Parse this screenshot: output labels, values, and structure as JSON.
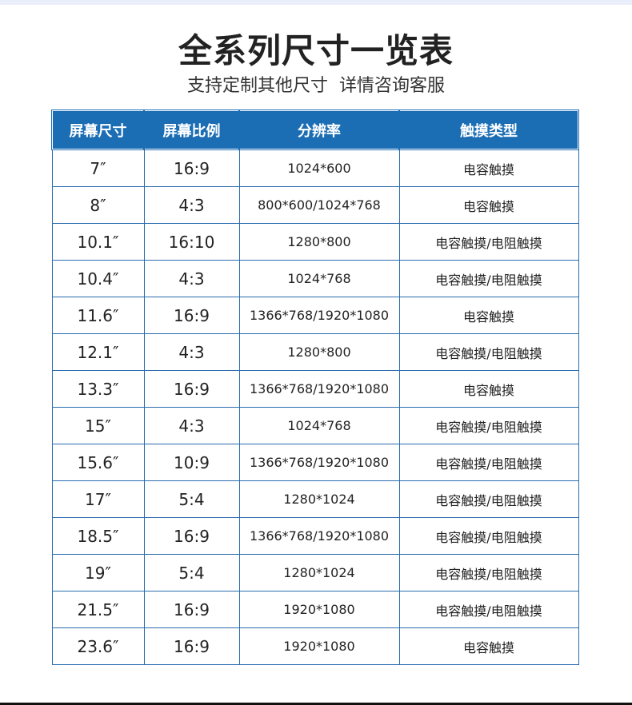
{
  "title": "全系列尺寸一览表",
  "subtitle": "支持定制其他尺寸  详情咨询客服",
  "table": {
    "headers": [
      "屏幕尺寸",
      "屏幕比例",
      "分辨率",
      "触摸类型"
    ],
    "rows": [
      [
        "7″",
        "16:9",
        "1024*600",
        "电容触摸"
      ],
      [
        "8″",
        "4:3",
        "800*600/1024*768",
        "电容触摸"
      ],
      [
        "10.1″",
        "16:10",
        "1280*800",
        "电容触摸/电阻触摸"
      ],
      [
        "10.4″",
        "4:3",
        "1024*768",
        "电容触摸/电阻触摸"
      ],
      [
        "11.6″",
        "16:9",
        "1366*768/1920*1080",
        "电容触摸"
      ],
      [
        "12.1″",
        "4:3",
        "1280*800",
        "电容触摸/电阻触摸"
      ],
      [
        "13.3″",
        "16:9",
        "1366*768/1920*1080",
        "电容触摸"
      ],
      [
        "15″",
        "4:3",
        "1024*768",
        "电容触摸/电阻触摸"
      ],
      [
        "15.6″",
        "10:9",
        "1366*768/1920*1080",
        "电容触摸/电阻触摸"
      ],
      [
        "17″",
        "5:4",
        "1280*1024",
        "电容触摸/电阻触摸"
      ],
      [
        "18.5″",
        "16:9",
        "1366*768/1920*1080",
        "电容触摸/电阻触摸"
      ],
      [
        "19″",
        "5:4",
        "1280*1024",
        "电容触摸/电阻触摸"
      ],
      [
        "21.5″",
        "16:9",
        "1920*1080",
        "电容触摸/电阻触摸"
      ],
      [
        "23.6″",
        "16:9",
        "1920*1080",
        "电容触摸"
      ]
    ]
  },
  "colors": {
    "header_bg": "#1b6db4",
    "border": "#2a6db0"
  }
}
